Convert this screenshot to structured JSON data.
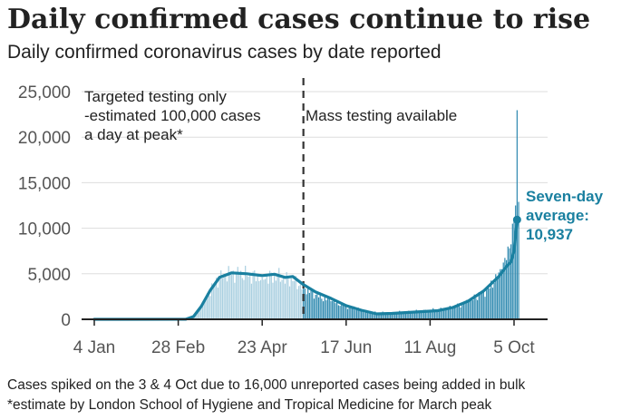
{
  "header": {
    "title": "Daily confirmed cases continue to rise",
    "subtitle": "Daily confirmed coronavirus cases by date reported"
  },
  "footnotes": [
    "Cases spiked on the 3 & 4 Oct due to 16,000 unreported cases being added in bulk",
    "*estimate by London School of Hygiene and Tropical Medicine for March peak"
  ],
  "colors": {
    "line": "#1a80a0",
    "bars_early": "#a9cfe0",
    "bars_late": "#2f8ab0",
    "grid": "#dddddd",
    "axis": "#222222",
    "divider": "#333333"
  },
  "chart_data": {
    "type": "bar+line",
    "title": "Daily confirmed coronavirus cases by date reported",
    "xlabel": "",
    "ylabel": "",
    "ylim": [
      0,
      25000
    ],
    "yticks": [
      0,
      5000,
      10000,
      15000,
      20000,
      25000
    ],
    "ytick_labels": [
      "0",
      "5,000",
      "10,000",
      "15,000",
      "20,000",
      "25,000"
    ],
    "x_tick_labels": [
      "4 Jan",
      "28 Feb",
      "23 Apr",
      "17 Jun",
      "11 Aug",
      "5 Oct"
    ],
    "x_tick_days": [
      0,
      55,
      110,
      165,
      220,
      275
    ],
    "divider_day": 137,
    "annotations": {
      "before": [
        "Targeted testing only",
        "-estimated 100,000 cases",
        "a day at peak*"
      ],
      "after": [
        "Mass testing available"
      ],
      "average": [
        "Seven-day",
        "average:",
        "10,937"
      ]
    },
    "series": [
      {
        "name": "Daily confirmed cases",
        "kind": "bar",
        "keypoints": [
          [
            0,
            0
          ],
          [
            55,
            20
          ],
          [
            62,
            150
          ],
          [
            68,
            900
          ],
          [
            72,
            2000
          ],
          [
            78,
            3800
          ],
          [
            85,
            5000
          ],
          [
            95,
            5000
          ],
          [
            110,
            4600
          ],
          [
            120,
            4700
          ],
          [
            130,
            4200
          ],
          [
            137,
            3500
          ],
          [
            145,
            2700
          ],
          [
            155,
            2000
          ],
          [
            165,
            1500
          ],
          [
            175,
            1000
          ],
          [
            185,
            700
          ],
          [
            195,
            750
          ],
          [
            205,
            800
          ],
          [
            215,
            900
          ],
          [
            225,
            1050
          ],
          [
            235,
            1300
          ],
          [
            245,
            1900
          ],
          [
            255,
            3000
          ],
          [
            262,
            4000
          ],
          [
            267,
            5500
          ],
          [
            270,
            6500
          ],
          [
            272,
            7800
          ],
          [
            274,
            10500
          ],
          [
            276,
            12500
          ],
          [
            277,
            22961
          ],
          [
            278,
            12900
          ]
        ]
      },
      {
        "name": "Seven-day average",
        "kind": "line",
        "keypoints": [
          [
            0,
            0
          ],
          [
            60,
            10
          ],
          [
            65,
            300
          ],
          [
            70,
            1400
          ],
          [
            76,
            3200
          ],
          [
            82,
            4600
          ],
          [
            90,
            5100
          ],
          [
            100,
            5000
          ],
          [
            110,
            4800
          ],
          [
            118,
            4950
          ],
          [
            125,
            4600
          ],
          [
            130,
            4700
          ],
          [
            137,
            3800
          ],
          [
            145,
            3000
          ],
          [
            155,
            2300
          ],
          [
            165,
            1500
          ],
          [
            175,
            1000
          ],
          [
            185,
            600
          ],
          [
            195,
            650
          ],
          [
            205,
            750
          ],
          [
            215,
            850
          ],
          [
            225,
            950
          ],
          [
            235,
            1300
          ],
          [
            245,
            2000
          ],
          [
            255,
            3100
          ],
          [
            265,
            4700
          ],
          [
            270,
            5800
          ],
          [
            273,
            6300
          ],
          [
            275,
            7500
          ],
          [
            277,
            10937
          ]
        ],
        "final_value": 10937
      }
    ]
  }
}
